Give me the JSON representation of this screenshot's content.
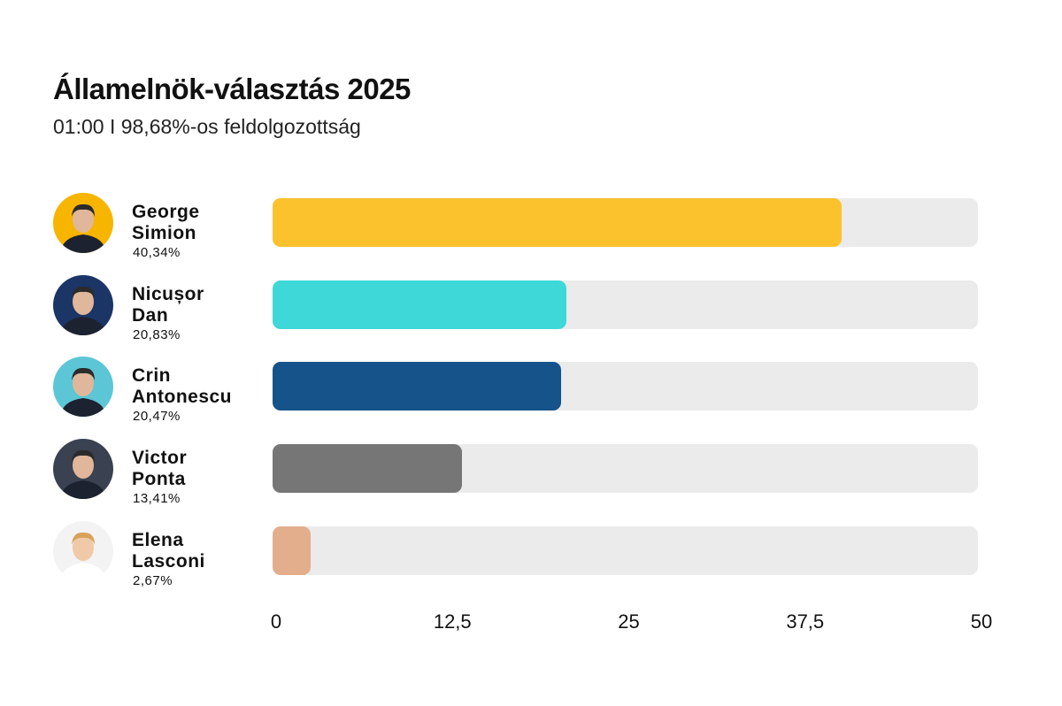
{
  "title": "Államelnök-választás 2025",
  "subtitle": "01:00 I 98,68%-os feldolgozottság",
  "chart_data": {
    "type": "bar",
    "orientation": "horizontal",
    "title": "Államelnök-választás 2025",
    "subtitle": "01:00 I 98,68%-os feldolgozottság",
    "xlim": [
      0,
      50
    ],
    "x_ticks": [
      "0",
      "12,5",
      "25",
      "37,5",
      "50"
    ],
    "x_tick_values": [
      0,
      12.5,
      25,
      37.5,
      50
    ],
    "grid": false,
    "categories": [
      {
        "name_line1": "George",
        "name_line2": "Simion",
        "value": 40.34,
        "label": "40,34%",
        "color": "#fcc22e",
        "avatar_bg": "#f7b500"
      },
      {
        "name_line1": "Nicușor",
        "name_line2": "Dan",
        "value": 20.83,
        "label": "20,83%",
        "color": "#3fd8d8",
        "avatar_bg": "#1b3566"
      },
      {
        "name_line1": "Crin",
        "name_line2": "Antonescu",
        "value": 20.47,
        "label": "20,47%",
        "color": "#15538a",
        "avatar_bg": "#5cc6d6"
      },
      {
        "name_line1": "Victor",
        "name_line2": "Ponta",
        "value": 13.41,
        "label": "13,41%",
        "color": "#767676",
        "avatar_bg": "#3a4150"
      },
      {
        "name_line1": "Elena",
        "name_line2": "Lasconi",
        "value": 2.67,
        "label": "2,67%",
        "color": "#e3ae8c",
        "avatar_bg": "#f3f3f3"
      }
    ],
    "track_color": "#ebebeb"
  }
}
